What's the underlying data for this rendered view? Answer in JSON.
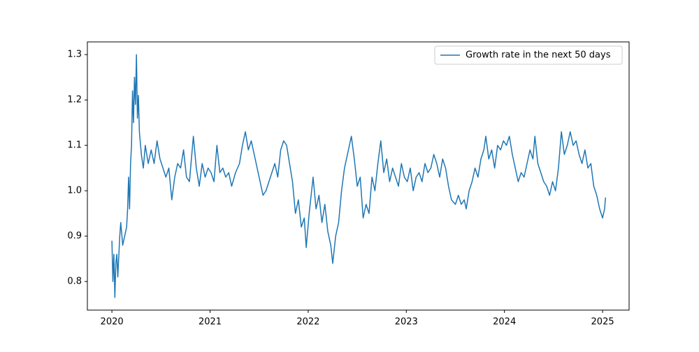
{
  "chart_data": {
    "type": "line",
    "x": [
      2020.0,
      2020.01,
      2020.02,
      2020.03,
      2020.04,
      2020.05,
      2020.06,
      2020.08,
      2020.09,
      2020.11,
      2020.13,
      2020.15,
      2020.16,
      2020.17,
      2020.18,
      2020.19,
      2020.2,
      2020.21,
      2020.22,
      2020.23,
      2020.24,
      2020.25,
      2020.26,
      2020.27,
      2020.28,
      2020.3,
      2020.32,
      2020.34,
      2020.37,
      2020.4,
      2020.43,
      2020.46,
      2020.49,
      2020.52,
      2020.55,
      2020.58,
      2020.61,
      2020.64,
      2020.67,
      2020.7,
      2020.73,
      2020.76,
      2020.79,
      2020.83,
      2020.86,
      2020.89,
      2020.92,
      2020.95,
      2020.98,
      2021.01,
      2021.04,
      2021.07,
      2021.1,
      2021.13,
      2021.16,
      2021.19,
      2021.22,
      2021.26,
      2021.3,
      2021.33,
      2021.36,
      2021.39,
      2021.42,
      2021.45,
      2021.48,
      2021.51,
      2021.54,
      2021.57,
      2021.6,
      2021.63,
      2021.66,
      2021.69,
      2021.72,
      2021.75,
      2021.78,
      2021.81,
      2021.84,
      2021.87,
      2021.9,
      2021.93,
      2021.96,
      2021.98,
      2022.01,
      2022.05,
      2022.08,
      2022.11,
      2022.14,
      2022.17,
      2022.2,
      2022.23,
      2022.25,
      2022.28,
      2022.31,
      2022.34,
      2022.37,
      2022.4,
      2022.44,
      2022.47,
      2022.5,
      2022.53,
      2022.56,
      2022.59,
      2022.62,
      2022.65,
      2022.68,
      2022.71,
      2022.74,
      2022.77,
      2022.8,
      2022.83,
      2022.86,
      2022.89,
      2022.92,
      2022.95,
      2022.98,
      2023.01,
      2023.04,
      2023.07,
      2023.1,
      2023.13,
      2023.16,
      2023.19,
      2023.22,
      2023.25,
      2023.28,
      2023.31,
      2023.34,
      2023.37,
      2023.4,
      2023.43,
      2023.46,
      2023.5,
      2023.53,
      2023.56,
      2023.59,
      2023.61,
      2023.64,
      2023.67,
      2023.7,
      2023.73,
      2023.76,
      2023.79,
      2023.81,
      2023.84,
      2023.87,
      2023.9,
      2023.93,
      2023.96,
      2023.99,
      2024.02,
      2024.05,
      2024.08,
      2024.11,
      2024.14,
      2024.17,
      2024.2,
      2024.23,
      2024.26,
      2024.29,
      2024.31,
      2024.34,
      2024.37,
      2024.4,
      2024.43,
      2024.46,
      2024.49,
      2024.52,
      2024.55,
      2024.58,
      2024.61,
      2024.64,
      2024.67,
      2024.7,
      2024.73,
      2024.76,
      2024.79,
      2024.82,
      2024.85,
      2024.88,
      2024.91,
      2024.94,
      2024.97,
      2025.0,
      2025.02,
      2025.03
    ],
    "series": [
      {
        "name": "Growth rate in the next 50 days",
        "color": "#1f77b4",
        "values": [
          0.89,
          0.8,
          0.86,
          0.765,
          0.84,
          0.86,
          0.81,
          0.9,
          0.93,
          0.88,
          0.9,
          0.92,
          0.96,
          1.03,
          0.96,
          1.06,
          1.1,
          1.22,
          1.15,
          1.25,
          1.19,
          1.3,
          1.16,
          1.21,
          1.13,
          1.08,
          1.05,
          1.1,
          1.06,
          1.09,
          1.06,
          1.11,
          1.07,
          1.05,
          1.03,
          1.05,
          0.98,
          1.03,
          1.06,
          1.05,
          1.09,
          1.03,
          1.02,
          1.12,
          1.05,
          1.01,
          1.06,
          1.03,
          1.05,
          1.04,
          1.02,
          1.1,
          1.04,
          1.05,
          1.03,
          1.04,
          1.01,
          1.04,
          1.06,
          1.1,
          1.13,
          1.09,
          1.11,
          1.08,
          1.05,
          1.02,
          0.99,
          1.0,
          1.02,
          1.04,
          1.06,
          1.03,
          1.09,
          1.11,
          1.1,
          1.06,
          1.02,
          0.95,
          0.98,
          0.92,
          0.94,
          0.875,
          0.95,
          1.03,
          0.96,
          0.99,
          0.93,
          0.97,
          0.91,
          0.88,
          0.84,
          0.9,
          0.93,
          1.0,
          1.05,
          1.08,
          1.12,
          1.07,
          1.01,
          1.03,
          0.94,
          0.97,
          0.95,
          1.03,
          1.0,
          1.06,
          1.11,
          1.04,
          1.07,
          1.02,
          1.05,
          1.03,
          1.01,
          1.06,
          1.03,
          1.02,
          1.05,
          1.0,
          1.03,
          1.04,
          1.02,
          1.06,
          1.04,
          1.05,
          1.08,
          1.06,
          1.03,
          1.07,
          1.05,
          1.01,
          0.98,
          0.97,
          0.99,
          0.97,
          0.98,
          0.96,
          1.0,
          1.02,
          1.05,
          1.03,
          1.07,
          1.09,
          1.12,
          1.07,
          1.09,
          1.05,
          1.1,
          1.09,
          1.11,
          1.1,
          1.12,
          1.08,
          1.05,
          1.02,
          1.04,
          1.03,
          1.06,
          1.09,
          1.07,
          1.12,
          1.06,
          1.04,
          1.02,
          1.01,
          0.99,
          1.02,
          1.0,
          1.05,
          1.13,
          1.08,
          1.1,
          1.13,
          1.1,
          1.11,
          1.08,
          1.06,
          1.09,
          1.05,
          1.06,
          1.01,
          0.99,
          0.96,
          0.94,
          0.96,
          0.985
        ]
      }
    ],
    "xlim": [
      2019.75,
      2025.27
    ],
    "xticks": [
      2020,
      2021,
      2022,
      2023,
      2024,
      2025
    ],
    "ylim": [
      0.737,
      1.328
    ],
    "yticks": [
      0.8,
      0.9,
      {
        "value": 1,
        "label": "1.0"
      },
      1.1,
      1.2,
      1.3
    ],
    "legend": "upper right",
    "grid": false
  }
}
